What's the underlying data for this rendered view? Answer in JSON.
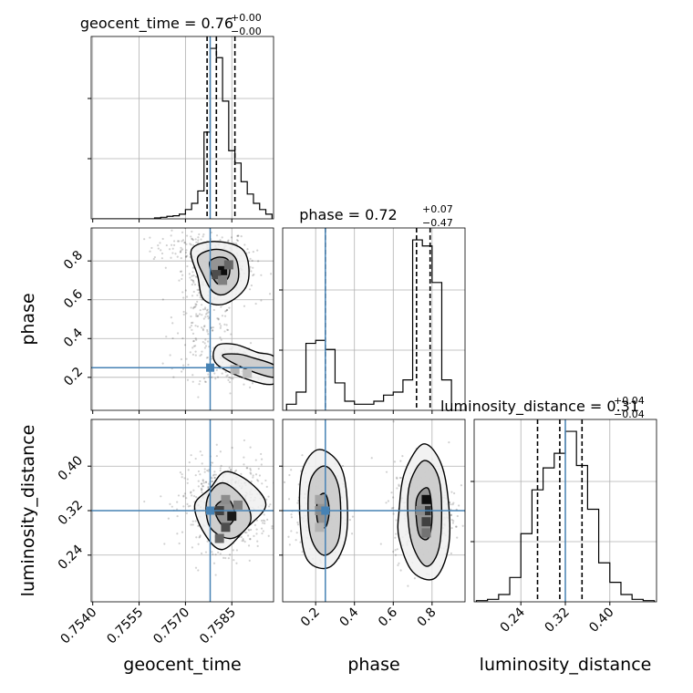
{
  "chart_data": {
    "type": "corner",
    "parameters": [
      "geocent_time",
      "phase",
      "luminosity_distance"
    ],
    "truth": {
      "geocent_time": 0.7578,
      "phase": 0.25,
      "luminosity_distance": 0.32
    },
    "truth_color": "#4682b4",
    "ranges": {
      "geocent_time": [
        0.75395,
        0.75985
      ],
      "phase": [
        0.03,
        0.97
      ],
      "luminosity_distance": [
        0.156,
        0.484
      ]
    },
    "ticks": {
      "geocent_time": {
        "values": [
          0.754,
          0.7555,
          0.757,
          0.7585
        ],
        "labels": [
          "0.7540",
          "0.7555",
          "0.7570",
          "0.7585"
        ]
      },
      "phase": {
        "values": [
          0.2,
          0.4,
          0.6,
          0.8
        ],
        "labels": [
          "0.2",
          "0.4",
          "0.6",
          "0.8"
        ]
      },
      "luminosity_distance": {
        "values": [
          0.24,
          0.32,
          0.4
        ],
        "labels": [
          "0.24",
          "0.32",
          "0.40"
        ]
      }
    },
    "titles": {
      "geocent_time": {
        "text": "geocent_time = 0.76",
        "sup": "+0.00",
        "sub": "−0.00"
      },
      "phase": {
        "text": "phase = 0.72",
        "sup": "+0.07",
        "sub": "−0.47"
      },
      "luminosity_distance": {
        "text": "luminosity_distance = 0.31",
        "sup": "+0.04",
        "sub": "−0.04"
      }
    },
    "axis_labels": {
      "geocent_time": "geocent_time",
      "phase": "phase",
      "luminosity_distance": "luminosity_distance"
    },
    "quantiles": {
      "geocent_time": [
        0.7577,
        0.758,
        0.7586
      ],
      "phase": [
        0.25,
        0.72,
        0.79
      ],
      "luminosity_distance": [
        0.27,
        0.31,
        0.35
      ]
    },
    "histograms": {
      "geocent_time": {
        "edges": [
          0.754,
          0.7542,
          0.7544,
          0.7546,
          0.7548,
          0.755,
          0.7552,
          0.7554,
          0.7556,
          0.7558,
          0.756,
          0.7562,
          0.7564,
          0.7566,
          0.7568,
          0.757,
          0.7572,
          0.7574,
          0.7576,
          0.7578,
          0.758,
          0.7582,
          0.7584,
          0.7586,
          0.7588,
          0.759,
          0.7592,
          0.7594,
          0.7596,
          0.7598
        ],
        "counts": [
          0,
          0,
          0,
          0,
          0,
          0,
          0,
          0,
          0,
          0,
          0.3,
          0.5,
          0.8,
          1.0,
          1.5,
          3.0,
          5.0,
          9.0,
          28.0,
          55.0,
          52.0,
          38.0,
          22.0,
          18.0,
          12.0,
          8.0,
          5.0,
          3.0,
          1.5
        ]
      },
      "phase": {
        "edges": [
          0.05,
          0.1,
          0.15,
          0.2,
          0.25,
          0.3,
          0.35,
          0.4,
          0.45,
          0.5,
          0.55,
          0.6,
          0.65,
          0.7,
          0.75,
          0.8,
          0.85,
          0.9
        ],
        "counts": [
          2,
          6,
          22,
          23,
          20,
          9,
          3,
          2,
          2,
          3,
          5,
          6,
          10,
          56,
          54,
          42,
          10
        ]
      },
      "luminosity_distance": {
        "edges": [
          0.16,
          0.18,
          0.2,
          0.22,
          0.24,
          0.26,
          0.28,
          0.3,
          0.32,
          0.34,
          0.36,
          0.38,
          0.4,
          0.42,
          0.44,
          0.46,
          0.48
        ],
        "counts": [
          0.5,
          1,
          3,
          10,
          28,
          46,
          55,
          61,
          70,
          56,
          38,
          16,
          8,
          3,
          1,
          0.5
        ]
      }
    },
    "scatter_clusters": [
      {
        "pair": [
          "geocent_time",
          "phase"
        ],
        "center": [
          0.7575,
          0.87
        ],
        "spread": [
          0.0008,
          0.04
        ],
        "n": 140
      },
      {
        "pair": [
          "geocent_time",
          "phase"
        ],
        "center": [
          0.7581,
          0.75
        ],
        "spread": [
          0.0006,
          0.06
        ],
        "n": 260
      },
      {
        "pair": [
          "geocent_time",
          "phase"
        ],
        "center": [
          0.7577,
          0.5
        ],
        "spread": [
          0.0005,
          0.1
        ],
        "n": 150
      },
      {
        "pair": [
          "geocent_time",
          "phase"
        ],
        "center": [
          0.7586,
          0.26
        ],
        "spread": [
          0.0008,
          0.05
        ],
        "n": 220
      },
      {
        "pair": [
          "geocent_time",
          "luminosity_distance"
        ],
        "center": [
          0.7583,
          0.33
        ],
        "spread": [
          0.0007,
          0.04
        ],
        "n": 600
      },
      {
        "pair": [
          "phase",
          "luminosity_distance"
        ],
        "center": [
          0.22,
          0.32
        ],
        "spread": [
          0.06,
          0.04
        ],
        "n": 350
      },
      {
        "pair": [
          "phase",
          "luminosity_distance"
        ],
        "center": [
          0.76,
          0.32
        ],
        "spread": [
          0.08,
          0.045
        ],
        "n": 450
      }
    ],
    "contours": [
      {
        "pair": [
          "geocent_time",
          "phase"
        ],
        "level": 3,
        "points": [
          [
            0.7578,
            0.8
          ],
          [
            0.7581,
            0.82
          ],
          [
            0.7584,
            0.8
          ],
          [
            0.7584,
            0.72
          ],
          [
            0.7581,
            0.68
          ],
          [
            0.7579,
            0.71
          ],
          [
            0.7578,
            0.76
          ]
        ]
      },
      {
        "pair": [
          "geocent_time",
          "phase"
        ],
        "level": 2,
        "points": [
          [
            0.7574,
            0.82
          ],
          [
            0.758,
            0.86
          ],
          [
            0.7586,
            0.82
          ],
          [
            0.7587,
            0.7
          ],
          [
            0.7583,
            0.63
          ],
          [
            0.7579,
            0.64
          ],
          [
            0.7576,
            0.72
          ]
        ]
      },
      {
        "pair": [
          "geocent_time",
          "phase"
        ],
        "level": 1,
        "points": [
          [
            0.7572,
            0.86
          ],
          [
            0.758,
            0.9
          ],
          [
            0.7589,
            0.85
          ],
          [
            0.759,
            0.68
          ],
          [
            0.7583,
            0.58
          ],
          [
            0.7576,
            0.6
          ],
          [
            0.7574,
            0.72
          ]
        ]
      },
      {
        "pair": [
          "geocent_time",
          "phase"
        ],
        "level": 2,
        "points": [
          [
            0.7582,
            0.31
          ],
          [
            0.759,
            0.24
          ],
          [
            0.7599,
            0.2
          ],
          [
            0.7599,
            0.26
          ],
          [
            0.7592,
            0.3
          ],
          [
            0.7587,
            0.32
          ]
        ]
      },
      {
        "pair": [
          "geocent_time",
          "phase"
        ],
        "level": 1,
        "points": [
          [
            0.758,
            0.36
          ],
          [
            0.7586,
            0.37
          ],
          [
            0.7593,
            0.33
          ],
          [
            0.7599,
            0.3
          ],
          [
            0.7599,
            0.17
          ],
          [
            0.759,
            0.19
          ],
          [
            0.758,
            0.27
          ]
        ]
      },
      {
        "pair": [
          "geocent_time",
          "luminosity_distance"
        ],
        "level": 3,
        "points": [
          [
            0.758,
            0.33
          ],
          [
            0.7584,
            0.34
          ],
          [
            0.7586,
            0.31
          ],
          [
            0.7583,
            0.29
          ],
          [
            0.758,
            0.31
          ]
        ]
      },
      {
        "pair": [
          "geocent_time",
          "luminosity_distance"
        ],
        "level": 2,
        "points": [
          [
            0.7577,
            0.34
          ],
          [
            0.7582,
            0.37
          ],
          [
            0.7589,
            0.34
          ],
          [
            0.7591,
            0.3
          ],
          [
            0.7585,
            0.27
          ],
          [
            0.7578,
            0.29
          ]
        ]
      },
      {
        "pair": [
          "geocent_time",
          "luminosity_distance"
        ],
        "level": 1,
        "points": [
          [
            0.7573,
            0.33
          ],
          [
            0.7578,
            0.36
          ],
          [
            0.7583,
            0.39
          ],
          [
            0.7591,
            0.37
          ],
          [
            0.7596,
            0.33
          ],
          [
            0.759,
            0.29
          ],
          [
            0.7582,
            0.25
          ],
          [
            0.7576,
            0.28
          ]
        ]
      },
      {
        "pair": [
          "phase",
          "luminosity_distance"
        ],
        "level": 3,
        "points": [
          [
            0.21,
            0.34
          ],
          [
            0.25,
            0.35
          ],
          [
            0.27,
            0.32
          ],
          [
            0.25,
            0.29
          ],
          [
            0.21,
            0.3
          ]
        ]
      },
      {
        "pair": [
          "phase",
          "luminosity_distance"
        ],
        "level": 2,
        "points": [
          [
            0.17,
            0.37
          ],
          [
            0.25,
            0.4
          ],
          [
            0.32,
            0.36
          ],
          [
            0.32,
            0.27
          ],
          [
            0.24,
            0.24
          ],
          [
            0.17,
            0.28
          ]
        ]
      },
      {
        "pair": [
          "phase",
          "luminosity_distance"
        ],
        "level": 1,
        "points": [
          [
            0.13,
            0.39
          ],
          [
            0.22,
            0.43
          ],
          [
            0.34,
            0.39
          ],
          [
            0.36,
            0.28
          ],
          [
            0.28,
            0.22
          ],
          [
            0.16,
            0.23
          ],
          [
            0.12,
            0.3
          ]
        ]
      },
      {
        "pair": [
          "phase",
          "luminosity_distance"
        ],
        "level": 3,
        "points": [
          [
            0.72,
            0.34
          ],
          [
            0.78,
            0.36
          ],
          [
            0.8,
            0.31
          ],
          [
            0.78,
            0.27
          ],
          [
            0.73,
            0.28
          ]
        ]
      },
      {
        "pair": [
          "phase",
          "luminosity_distance"
        ],
        "level": 2,
        "points": [
          [
            0.68,
            0.36
          ],
          [
            0.76,
            0.41
          ],
          [
            0.84,
            0.37
          ],
          [
            0.84,
            0.26
          ],
          [
            0.77,
            0.22
          ],
          [
            0.69,
            0.27
          ]
        ]
      },
      {
        "pair": [
          "phase",
          "luminosity_distance"
        ],
        "level": 1,
        "points": [
          [
            0.63,
            0.32
          ],
          [
            0.66,
            0.39
          ],
          [
            0.76,
            0.44
          ],
          [
            0.86,
            0.39
          ],
          [
            0.89,
            0.27
          ],
          [
            0.82,
            0.2
          ],
          [
            0.7,
            0.21
          ],
          [
            0.63,
            0.27
          ]
        ]
      }
    ],
    "density_cells": [
      {
        "pair": [
          "geocent_time",
          "phase"
        ],
        "cells": [
          [
            0.7582,
            0.75,
            0.95
          ],
          [
            0.758,
            0.73,
            0.7
          ],
          [
            0.7584,
            0.78,
            0.6
          ],
          [
            0.7582,
            0.7,
            0.5
          ],
          [
            0.7586,
            0.24,
            0.3
          ],
          [
            0.759,
            0.22,
            0.25
          ]
        ]
      },
      {
        "pair": [
          "geocent_time",
          "luminosity_distance"
        ],
        "cells": [
          [
            0.7585,
            0.31,
            0.9
          ],
          [
            0.7581,
            0.32,
            0.75
          ],
          [
            0.7583,
            0.29,
            0.7
          ],
          [
            0.7581,
            0.27,
            0.6
          ],
          [
            0.7587,
            0.33,
            0.5
          ],
          [
            0.7583,
            0.34,
            0.45
          ]
        ]
      },
      {
        "pair": [
          "phase",
          "luminosity_distance"
        ],
        "cells": [
          [
            0.77,
            0.34,
            0.95
          ],
          [
            0.77,
            0.32,
            0.8
          ],
          [
            0.77,
            0.3,
            0.75
          ],
          [
            0.77,
            0.28,
            0.55
          ],
          [
            0.74,
            0.32,
            0.45
          ],
          [
            0.22,
            0.32,
            0.45
          ],
          [
            0.22,
            0.34,
            0.35
          ],
          [
            0.22,
            0.29,
            0.3
          ]
        ]
      }
    ]
  }
}
